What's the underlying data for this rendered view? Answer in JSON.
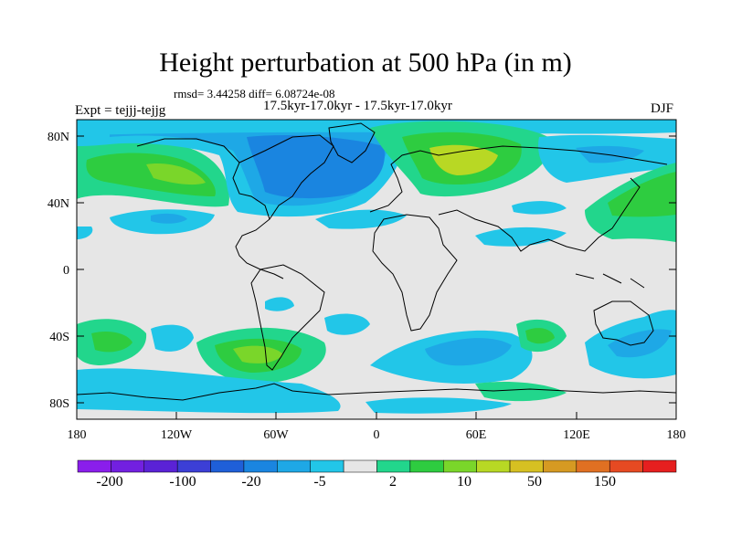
{
  "title": "Height perturbation at 500 hPa (in m)",
  "stats": "rmsd= 3.44258 diff= 6.08724e-08",
  "period": "17.5kyr-17.0kyr - 17.5kyr-17.0kyr",
  "experiment": "Expt = tejjj-tejjg",
  "season": "DJF",
  "map": {
    "projection": "cylindrical equidistant",
    "lat_range": [
      -90,
      90
    ],
    "lon_range": [
      -180,
      180
    ],
    "lat_ticks": [
      "80N",
      "40N",
      "0",
      "40S",
      "80S"
    ],
    "lon_ticks": [
      "180",
      "120W",
      "60W",
      "0",
      "60E",
      "120E",
      "180"
    ]
  },
  "colorbar": {
    "labels": [
      "-200",
      "-100",
      "-20",
      "-5",
      "2",
      "10",
      "50",
      "150"
    ],
    "colors": [
      "#8a1eeb",
      "#7220e0",
      "#5a22d6",
      "#3c3fd6",
      "#1f5fd8",
      "#1a85e0",
      "#1ea8e6",
      "#22c6e8",
      "#e6e6e6",
      "#22d68c",
      "#2ecc40",
      "#7ad62a",
      "#b8d824",
      "#d6c022",
      "#d69a22",
      "#e07022",
      "#e64a22",
      "#e61f1f"
    ]
  },
  "fields": [
    {
      "name": "n-atlantic-low",
      "colors": [
        "#22c6e8",
        "#1ea8e6",
        "#1a85e0"
      ]
    },
    {
      "name": "eurasia-high",
      "colors": [
        "#22d68c",
        "#2ecc40",
        "#7ad62a",
        "#b8d824"
      ]
    },
    {
      "name": "n-pacific-high",
      "colors": [
        "#22d68c",
        "#2ecc40",
        "#7ad62a"
      ]
    },
    {
      "name": "s-atlantic-high",
      "colors": [
        "#22d68c",
        "#2ecc40",
        "#7ad62a"
      ]
    }
  ]
}
